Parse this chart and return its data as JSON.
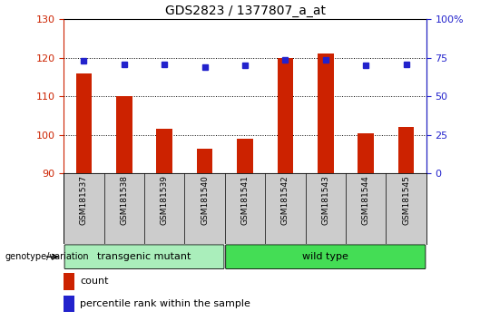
{
  "title": "GDS2823 / 1377807_a_at",
  "samples": [
    "GSM181537",
    "GSM181538",
    "GSM181539",
    "GSM181540",
    "GSM181541",
    "GSM181542",
    "GSM181543",
    "GSM181544",
    "GSM181545"
  ],
  "counts": [
    116,
    110,
    101.5,
    96.5,
    99,
    120,
    121,
    100.5,
    102
  ],
  "percentile_ranks": [
    73,
    71,
    70.5,
    69,
    70,
    73.5,
    73.5,
    70,
    71
  ],
  "ylim_left": [
    90,
    130
  ],
  "ylim_right": [
    0,
    100
  ],
  "yticks_left": [
    90,
    100,
    110,
    120,
    130
  ],
  "yticks_right": [
    0,
    25,
    50,
    75,
    100
  ],
  "bar_color": "#CC2200",
  "dot_color": "#2222CC",
  "background_color": "#ffffff",
  "group_labels": [
    "transgenic mutant",
    "wild type"
  ],
  "group_ranges": [
    [
      0,
      4
    ],
    [
      4,
      9
    ]
  ],
  "group_colors": [
    "#aaeebb",
    "#44dd55"
  ],
  "genotype_label": "genotype/variation",
  "legend_count_label": "count",
  "legend_percentile_label": "percentile rank within the sample",
  "tick_label_area_color": "#cccccc",
  "title_fontsize": 10,
  "tick_fontsize": 8,
  "label_fontsize": 8
}
